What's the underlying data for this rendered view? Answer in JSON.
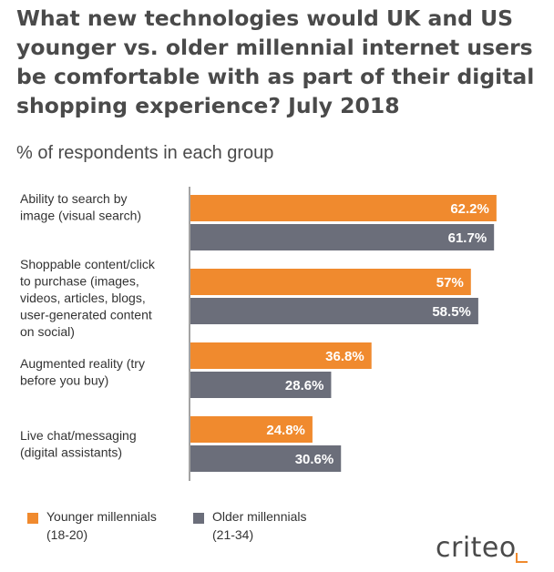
{
  "title": "What new technologies would UK and US younger vs. older millennial internet users be comfortable with as part of their digital shopping experience? July 2018",
  "subtitle": "% of respondents in each group",
  "colors": {
    "younger": "#f08a2e",
    "older": "#6b6e7a",
    "axis": "#666666"
  },
  "chart_data": {
    "type": "bar",
    "orientation": "horizontal",
    "categories": [
      [
        "Ability to search by",
        "image (visual search)"
      ],
      [
        "Shoppable content/click",
        "to purchase (images,",
        "videos, articles, blogs,",
        "user-generated content",
        "on social)"
      ],
      [
        "Augmented reality (try",
        "before you buy)"
      ],
      [
        "Live chat/messaging",
        "(digital assistants)"
      ]
    ],
    "series": [
      {
        "name": "Younger millennials (18-20)",
        "values": [
          62.2,
          57,
          36.8,
          24.8
        ],
        "labels": [
          "62.2%",
          "57%",
          "36.8%",
          "24.8%"
        ]
      },
      {
        "name": "Older millennials (21-34)",
        "values": [
          61.7,
          58.5,
          28.6,
          30.6
        ],
        "labels": [
          "61.7%",
          "58.5%",
          "28.6%",
          "30.6%"
        ]
      }
    ]
  },
  "legend": {
    "younger": {
      "line1": "Younger millennials",
      "line2": "(18-20)"
    },
    "older": {
      "line1": "Older millennials",
      "line2": "(21-34)"
    }
  },
  "logo": {
    "text": "criteo"
  }
}
